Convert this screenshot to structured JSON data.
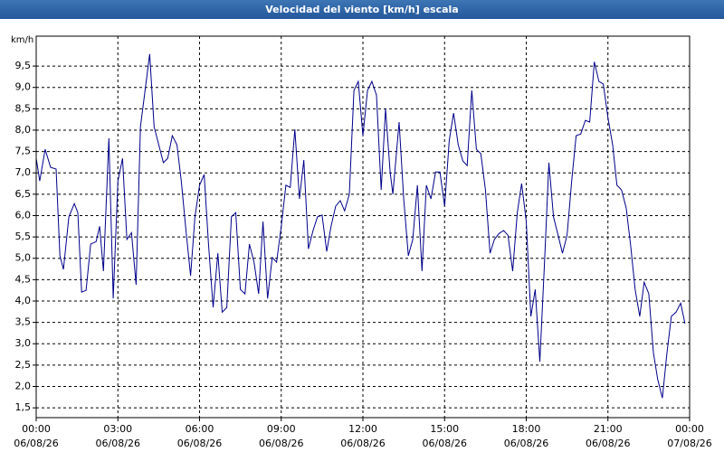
{
  "chart_data": {
    "type": "line",
    "title": "Velocidad del viento [km/h] escala",
    "y_unit": "km/h",
    "xlim": [
      0,
      24
    ],
    "ylim": [
      1.27,
      10.2
    ],
    "grid": true,
    "xticks": [
      {
        "value": 0,
        "label": "00:00\n06/08/26"
      },
      {
        "value": 3,
        "label": "03:00\n06/08/26"
      },
      {
        "value": 6,
        "label": "06:00\n06/08/26"
      },
      {
        "value": 9,
        "label": "09:00\n06/08/26"
      },
      {
        "value": 12,
        "label": "12:00\n06/08/26"
      },
      {
        "value": 15,
        "label": "15:00\n06/08/26"
      },
      {
        "value": 18,
        "label": "18:00\n06/08/26"
      },
      {
        "value": 21,
        "label": "21:00\n06/08/26"
      },
      {
        "value": 24,
        "label": "00:00\n07/08/26"
      }
    ],
    "yticks": [
      {
        "value": 1.5,
        "label": "1,5"
      },
      {
        "value": 2,
        "label": "2,0"
      },
      {
        "value": 2.5,
        "label": "2,5"
      },
      {
        "value": 3,
        "label": "3,0"
      },
      {
        "value": 3.5,
        "label": "3,5"
      },
      {
        "value": 4,
        "label": "4,0"
      },
      {
        "value": 4.5,
        "label": "4,5"
      },
      {
        "value": 5,
        "label": "5,0"
      },
      {
        "value": 5.5,
        "label": "5,5"
      },
      {
        "value": 6,
        "label": "6,0"
      },
      {
        "value": 6.5,
        "label": "6,5"
      },
      {
        "value": 7,
        "label": "7,0"
      },
      {
        "value": 7.5,
        "label": "7,5"
      },
      {
        "value": 8,
        "label": "8,0"
      },
      {
        "value": 8.5,
        "label": "8,5"
      },
      {
        "value": 9,
        "label": "9,0"
      },
      {
        "value": 9.5,
        "label": "9,5"
      }
    ],
    "series": [
      {
        "name": "Velocidad del viento",
        "color": "#00008b",
        "x": [
          0,
          0.13,
          0.33,
          0.53,
          0.73,
          0.87,
          1,
          1.2,
          1.4,
          1.53,
          1.67,
          1.83,
          2,
          2.2,
          2.33,
          2.47,
          2.67,
          2.83,
          3,
          3.17,
          3.33,
          3.5,
          3.67,
          3.83,
          4,
          4.17,
          4.33,
          4.5,
          4.67,
          4.83,
          5,
          5.17,
          5.33,
          5.5,
          5.67,
          5.83,
          6,
          6.17,
          6.33,
          6.5,
          6.67,
          6.83,
          7,
          7.17,
          7.33,
          7.5,
          7.67,
          7.83,
          8,
          8.17,
          8.33,
          8.5,
          8.67,
          8.83,
          9,
          9.17,
          9.33,
          9.5,
          9.67,
          9.83,
          10,
          10.17,
          10.33,
          10.5,
          10.67,
          10.83,
          11,
          11.17,
          11.33,
          11.5,
          11.67,
          11.83,
          12,
          12.17,
          12.33,
          12.5,
          12.67,
          12.83,
          13,
          13.1,
          13.33,
          13.5,
          13.67,
          13.83,
          14,
          14.17,
          14.33,
          14.5,
          14.67,
          14.83,
          15,
          15.17,
          15.33,
          15.5,
          15.67,
          15.83,
          16,
          16.17,
          16.33,
          16.5,
          16.67,
          16.83,
          17,
          17.17,
          17.33,
          17.5,
          17.67,
          17.83,
          18,
          18.17,
          18.33,
          18.5,
          18.67,
          18.83,
          19,
          19.17,
          19.33,
          19.5,
          19.67,
          19.83,
          20,
          20.17,
          20.33,
          20.5,
          20.67,
          20.83,
          21,
          21.17,
          21.33,
          21.5,
          21.67,
          21.83,
          22,
          22.17,
          22.33,
          22.5,
          22.67,
          22.83,
          23,
          23.17,
          23.33,
          23.5,
          23.67,
          23.83
        ],
        "values": [
          7.34,
          6.81,
          7.55,
          7.13,
          7.09,
          5.06,
          4.74,
          5.97,
          6.28,
          6.07,
          4.21,
          4.25,
          5.33,
          5.39,
          5.75,
          4.7,
          7.81,
          4.06,
          6.81,
          7.34,
          5.44,
          5.6,
          4.38,
          8.08,
          8.93,
          9.78,
          8.08,
          7.66,
          7.24,
          7.34,
          7.87,
          7.66,
          6.81,
          5.65,
          4.59,
          5.97,
          6.71,
          6.96,
          5.33,
          3.85,
          5.12,
          3.74,
          3.85,
          5.97,
          6.07,
          4.27,
          4.17,
          5.33,
          4.91,
          4.17,
          5.86,
          4.06,
          5.02,
          4.91,
          5.75,
          6.71,
          6.66,
          8.02,
          6.39,
          7.3,
          5.22,
          5.65,
          5.97,
          6.01,
          5.16,
          5.75,
          6.22,
          6.35,
          6.11,
          6.5,
          8.93,
          9.14,
          7.87,
          8.93,
          9.14,
          8.82,
          6.6,
          8.5,
          7.02,
          6.5,
          8.19,
          6.39,
          5.06,
          5.44,
          6.71,
          4.7,
          6.71,
          6.39,
          7.02,
          7.02,
          6.22,
          7.76,
          8.4,
          7.66,
          7.28,
          7.17,
          8.93,
          7.55,
          7.45,
          6.6,
          5.12,
          5.44,
          5.58,
          5.65,
          5.54,
          4.7,
          6.07,
          6.75,
          5.86,
          3.64,
          4.27,
          2.58,
          4.91,
          7.24,
          5.97,
          5.54,
          5.12,
          5.54,
          6.81,
          7.87,
          7.91,
          8.23,
          8.19,
          9.6,
          9.14,
          9.08,
          8.29,
          7.66,
          6.71,
          6.6,
          6.18,
          5.33,
          4.27,
          3.64,
          4.44,
          4.17,
          2.79,
          2.16,
          1.73,
          2.79,
          3.64,
          3.74,
          3.95,
          3.47
        ]
      }
    ]
  }
}
